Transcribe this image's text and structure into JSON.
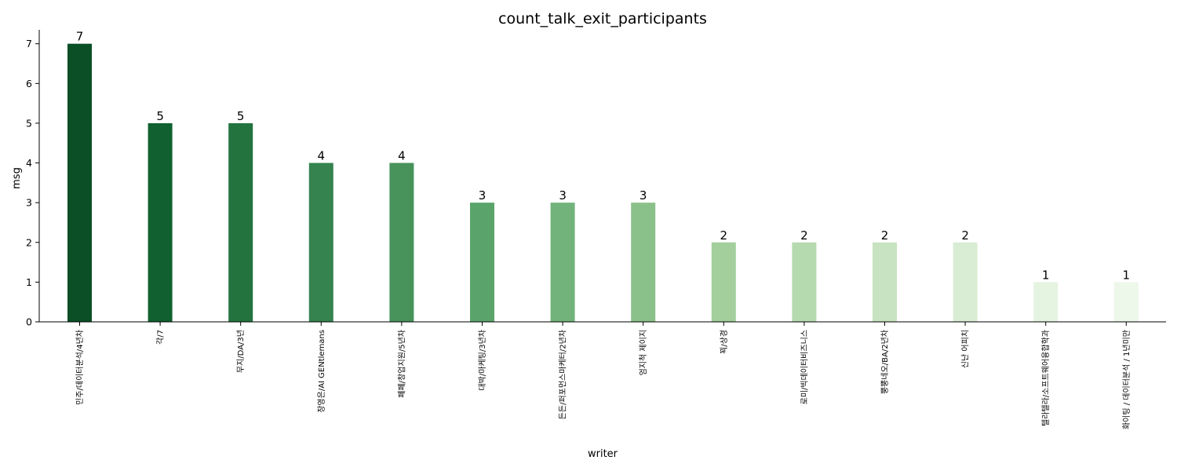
{
  "chart_data": {
    "type": "bar",
    "title": "count_talk_exit_participants",
    "xlabel": "writer",
    "ylabel": "msg",
    "ylim": [
      0,
      7.35
    ],
    "yticks": [
      0,
      1,
      2,
      3,
      4,
      5,
      6,
      7
    ],
    "grid": false,
    "legend": "none",
    "categories": [
      "민주/데이터분석/4년차",
      "각/7",
      "무지/DA/3년",
      "장영은/AI GENtlemans",
      "페페/창업지원/5년차",
      "대박/마케팅/3년차",
      "든든/퍼포먼스마케터/2년차",
      "엄지척 제이지",
      "꾁/상경",
      "로미/빅데이터비즈니스",
      "뿡뿡네오/BA/2년차",
      "신난 어피치",
      "텔라텔라/소프트웨어융합학과",
      "화이팅 / 데이터분석 / 1년미만"
    ],
    "values": [
      7,
      5,
      5,
      4,
      4,
      3,
      3,
      3,
      2,
      2,
      2,
      2,
      1,
      1
    ],
    "colors": [
      "#0b4f26",
      "#10612f",
      "#23733f",
      "#35834f",
      "#47935b",
      "#5aa46b",
      "#72b37b",
      "#8ac18a",
      "#a2cf9c",
      "#b6dab0",
      "#c7e3c1",
      "#d8edd3",
      "#e5f3e1",
      "#edf7ea"
    ]
  }
}
